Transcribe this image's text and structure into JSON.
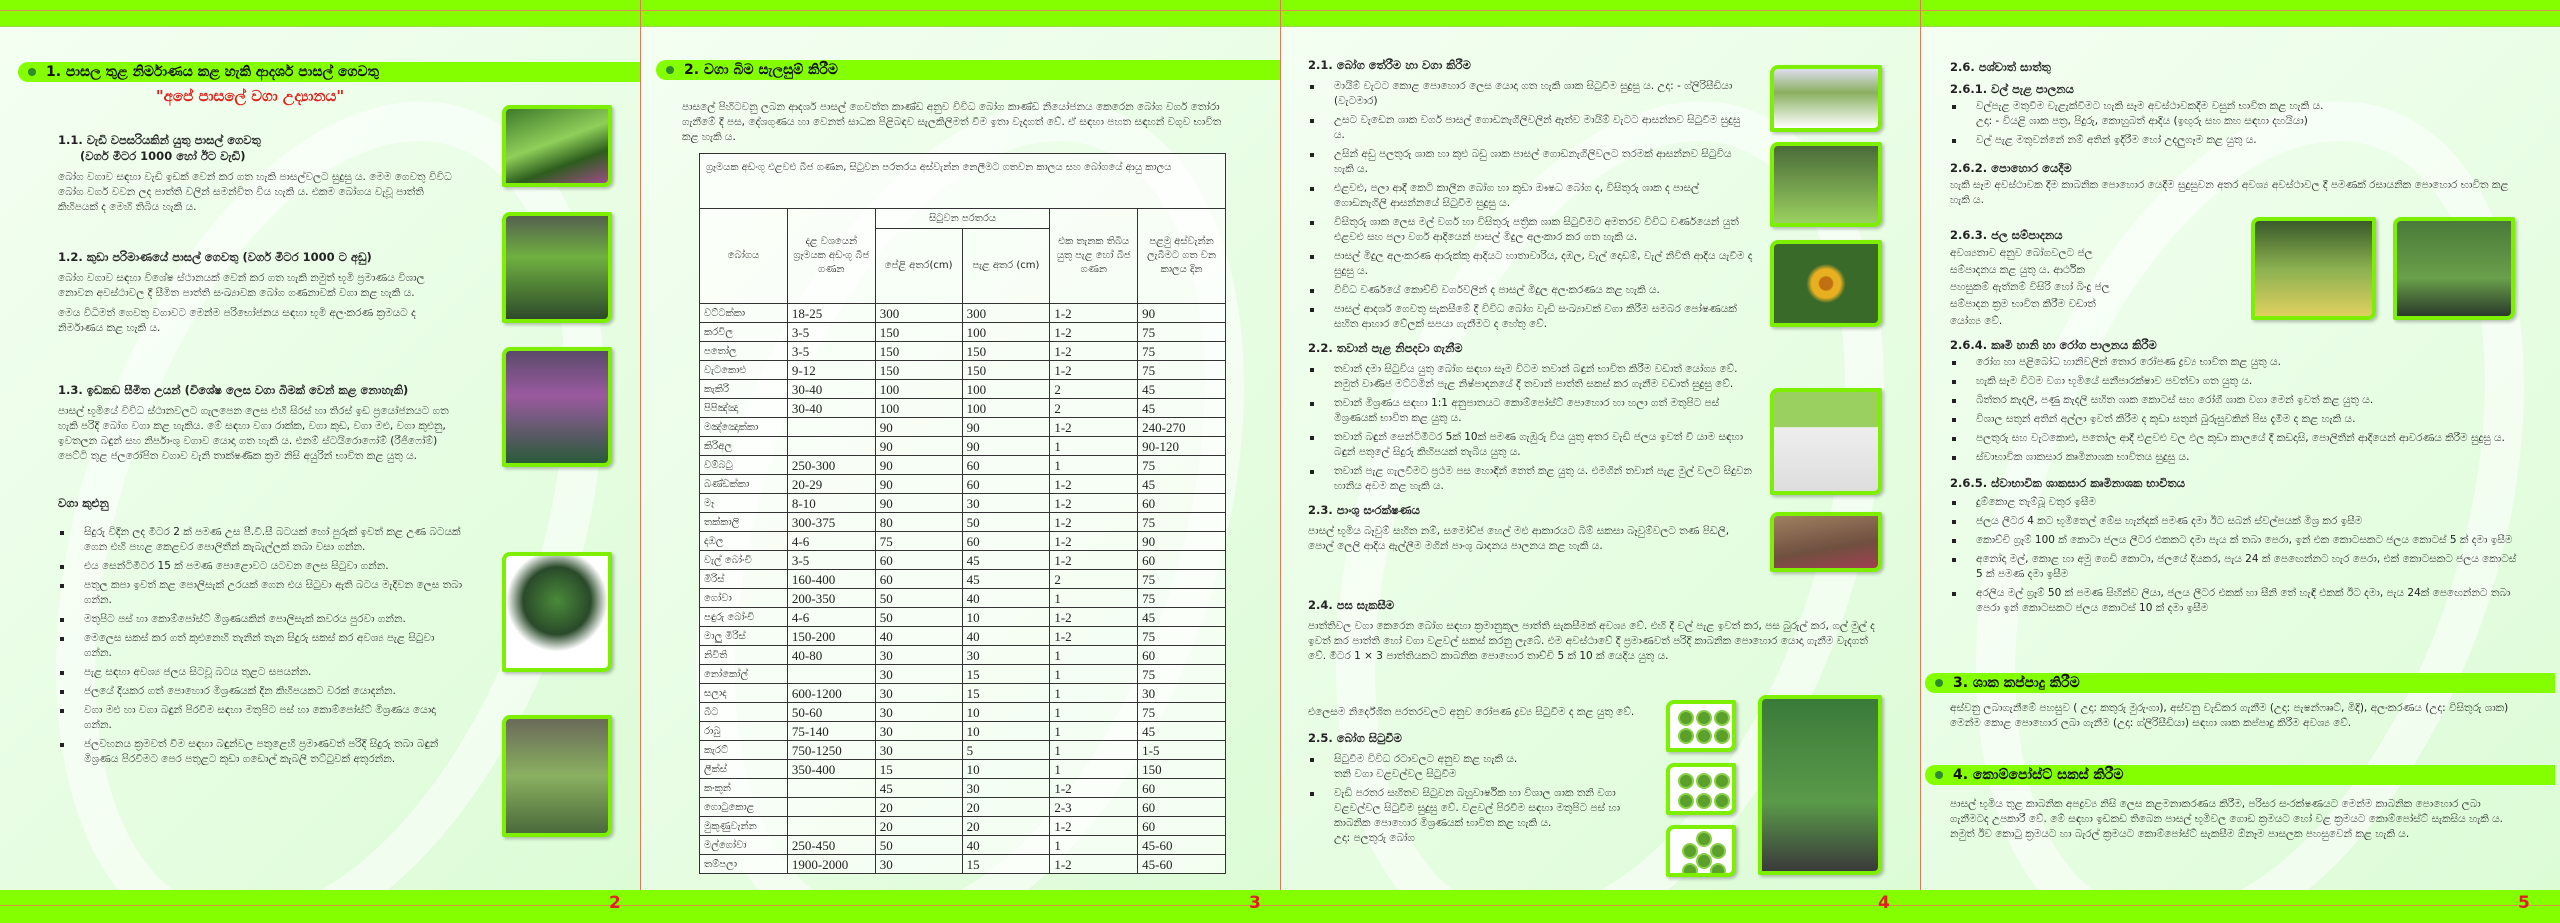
{
  "colors": {
    "band": "#84ff00",
    "page_number": "#e02020",
    "bullet_dot": "#2e8b2e"
  },
  "page2": {
    "number": "2",
    "section_title": "1.   පාසල තුළ නිර්මාණය කළ හැකි ආදර්ශ පාසල් ගෙවතු",
    "subtitle": "\"අපේ පාසලේ වගා උද්‍යානය\"",
    "s11_heading": "1.1.  වැඩි වපසරියකින් යුතු පාසල් ගෙවතු",
    "s11_heading2": "(වර්ග මීටර 1000 හෝ ඊට වැඩි)",
    "s11_text": "බෝග වගාව සඳහා වැඩි ඉඩක් වෙන් කර ගත හැකි පාසල්වලට සුදුසු ය. මෙම ගෙවතු විවිධ බෝග වර්ග වවන ලද පාත්ති වලින් සමන්විත විය හැකි ය. එකම බෝගය වැවූ පාත්ති කිහිපයක් ද මෙහි තිබිය හැකි ය.",
    "s12_heading": "1.2. කුඩා පරිමාණයේ පාසල් ගෙවතු (වර්ග මීටර 1000 ට අඩු)",
    "s12_text1": "බෝග වගාව සඳහා විශේෂ ස්ථානයක් වෙන් කර ගත හැකි නමුත් භූමි ප්‍රමාණය විශාල නොවන අවස්ථාවල දී සීමිත පාත්ති සංඛ්‍යාවක බෝග ගණනාවක් වගා කළ හැකි ය.",
    "s12_text2": "මෙය විධිමත් ගෙවතු වගාවට මෙන්ම පරිභෝජනය සඳහා භූමි අලංකරණ ක්‍රමයට ද නිර්මාණය කළ හැකි ය.",
    "s13_heading": "1.3. ඉඩකඩ සීමිත උයන් (විශේෂ ලෙස වගා බිමක් වෙන් කළ නොහැකි)",
    "s13_text": "පාසල් භූමියේ විවිධ ස්ථානවලට ගැලපෙන ලෙස එහි සිරස් හා තිරස් ඉඩ ප්‍රයෝජනයට ගත හැකි පරිදි බෝග වගා කළ හැකිය. මේ සඳහා වගා රාක්ක, වගා කුඩ, වගා මළු, වගා කුළුනු, ඉවතලන බඳුන් සහ නිර්පාංශු වගාව යොදා ගත හැකි ය. එනම් ස්ටයිරොෆෝම් (රීජිෆෝම්) පෙට්ටි තුළ ජලරෝපිත වගාව වැනි තාක්ෂණික ක්‍රම නිසි අයුරින් භාවිත කළ යුතු ය.",
    "towers_heading": "වගා කුළුනු",
    "towers_items": [
      "සිදුරු විදින ලද මීටර 2 ක් පමණ උස පී.වී.සී බටයක් හෝ පුරුක් ඉවත් කළ උණ බටයක් ගෙන එහි පහළ කෙළවර පොලිතීන් කැබැල්ලක් තබා වසා ගන්න.",
      "එය සෙන්ටිමීටර 15 ක් පමණ පොළොවට යටවන ලෙස සිටුවා ගන්න.",
      "පතුල කපා ඉවත් කළ පොලිසැක් උරයක් ගෙන එය සිටුවා ඇති බටය මැදිවන ලෙස තබා ගන්න.",
      "මතුපිට පස් හා කොම්පෝස්ට් මිශ්‍රණයකින් පොලිසැක් කවරය පුරවා ගන්න.",
      "මෙලෙස සකස් කර ගත් කුළුනෙහි තැනින් තැන සිදුරු සකස් කර අවශ්‍ය පැළ සිටුවා ගන්න.",
      "පැළ සඳහා අවශ්‍ය ජලය සිටවූ බටය තුළට සපයන්න.",
      "ජලයේ දියකර ගත් පොහොර මිශ්‍රණයක් දින කිහිපයකට වරක් යොදන්න.",
      "වගා මළු හා වගා බඳුන් පිරවීම සඳහා මතුපිට පස් හා කොම්පෝස්ට් මිශ්‍රණය යොදා ගන්න.",
      "ජලවහනය ක්‍රමවත් වීම සඳහා බඳුන්වල පතුළෙහි ප්‍රමාණවත් පරිදි සිදුරු තබා බඳුන් මිශ්‍රණය පිරවීමට පෙර පතුළට කුඩා ගඩොල් කැබලි තට්ටුවක් අතුරන්න."
    ]
  },
  "page3": {
    "number": "3",
    "section_title": "2. වගා බිම සැලසුම් කිරීම",
    "intro": "පාසලේ පිහිටවනු ලබන ආදර්ශ පාසල් ගෙවත්ත කාණ්ඩ අනුව විවිධ බෝග කාණ්ඩ නියෝජනය කෙරෙන බෝග වර්ග තෝරා ගැනීමේ දී පස, දේශගුණය හා වෙනත් සාධක පිළිබඳව සැලකිලිමත් වීම ඉතා වැදගත් වේ. ඒ සඳහා පහත සඳහන් වගුව භාවිත කළ හැකි ය.",
    "table": {
      "caption": "ග්‍රෑමයක අඩංගු එළවළු බීජ ගණන, සිටුවන පරතරය අස්වැන්න නෙලීමට ගතවන කාලය සහ බෝගයේ ආයු කාලය",
      "headers": {
        "crop": "බෝගය",
        "seeds": "දළ වශයෙන් ග්‍රෑමයක අඩංගු බීජ ගණන",
        "spacing": "සිටුවන පරතරය",
        "row": "පේළි අතර(cm)",
        "plant": "පැළ අතර (cm)",
        "per_hill": "එක තැනක තිබිය යුතු පැළ හෝ බීජ ගණන",
        "days": "පළමු අස්වැන්න ලැබීමට ගත වන කාලය දින"
      },
      "rows": [
        [
          "වට්ටක්කා",
          "18-25",
          "300",
          "300",
          "1-2",
          "90"
        ],
        [
          "කරවිල",
          "3-5",
          "150",
          "100",
          "1-2",
          "75"
        ],
        [
          "පතෝල",
          "3-5",
          "150",
          "150",
          "1-2",
          "75"
        ],
        [
          "වැටකොළු",
          "9-12",
          "150",
          "150",
          "1-2",
          "75"
        ],
        [
          "කැකිරි",
          "30-40",
          "100",
          "100",
          "2",
          "45"
        ],
        [
          "පිපිඤ්ඤා",
          "30-40",
          "100",
          "100",
          "2",
          "45"
        ],
        [
          "මඤ්ඤොක්කා",
          "",
          "90",
          "90",
          "1-2",
          "240-270"
        ],
        [
          "කිරිඅල",
          "",
          "90",
          "90",
          "1",
          "90-120"
        ],
        [
          "වම්බටු",
          "250-300",
          "90",
          "60",
          "1",
          "75"
        ],
        [
          "බණ්ඩක්කා",
          "20-29",
          "90",
          "60",
          "1-2",
          "45"
        ],
        [
          "මෑ",
          "8-10",
          "90",
          "30",
          "1-2",
          "60"
        ],
        [
          "තක්කාලි",
          "300-375",
          "80",
          "50",
          "1-2",
          "75"
        ],
        [
          "දඹල",
          "4-6",
          "75",
          "60",
          "1-2",
          "90"
        ],
        [
          "වැල් බෝංචි",
          "3-5",
          "60",
          "45",
          "1-2",
          "60"
        ],
        [
          "මිරිස්",
          "160-400",
          "60",
          "45",
          "2",
          "75"
        ],
        [
          "ගෝවා",
          "200-350",
          "50",
          "40",
          "1",
          "75"
        ],
        [
          "පඳුරු බෝංචි",
          "4-6",
          "50",
          "10",
          "1-2",
          "45"
        ],
        [
          "මාලු මිරිස්",
          "150-200",
          "40",
          "40",
          "1-2",
          "75"
        ],
        [
          "නිවිති",
          "40-80",
          "30",
          "30",
          "1",
          "60"
        ],
        [
          "නෝකෝල්",
          "",
          "30",
          "15",
          "1",
          "75"
        ],
        [
          "සලාද",
          "600-1200",
          "30",
          "15",
          "1",
          "30"
        ],
        [
          "බීට",
          "50-60",
          "30",
          "10",
          "1",
          "75"
        ],
        [
          "රාබු",
          "75-140",
          "30",
          "10",
          "1",
          "45"
        ],
        [
          "කැරට්",
          "750-1250",
          "30",
          "5",
          "1",
          "1-5"
        ],
        [
          "ලීක්ස්",
          "350-400",
          "15",
          "10",
          "1",
          "150"
        ],
        [
          "කංකුන්",
          "",
          "45",
          "30",
          "1-2",
          "60"
        ],
        [
          "ගොටුකොළ",
          "",
          "20",
          "20",
          "2-3",
          "60"
        ],
        [
          "මුකුණුවැන්න",
          "",
          "20",
          "20",
          "1-2",
          "60"
        ],
        [
          "මල්ගෝවා",
          "250-450",
          "50",
          "40",
          "1",
          "45-60"
        ],
        [
          "තම්පලා",
          "1900-2000",
          "30",
          "15",
          "1-2",
          "45-60"
        ]
      ]
    }
  },
  "page4": {
    "number": "4",
    "s21_heading": "2.1. බෝග තේරීම හා වගා කිරීම",
    "s21_items": [
      "මායිම් වැටට කොළ පොහොර ලෙස යොදා ගත හැකි ශාක සිටුවීම සුදුසු ය. උදා: - ග්ලිරිසීඩියා (වැටමාර)",
      "උසට වැඩෙන ශාක වර්ග පාසල් ගොඩනැගිලිවලින් ඈත්ව මායිම් වැටට ආසන්නව සිටුවීම සුදුසු ය.",
      "උසින් අඩු පලතුරු ශාක හා කුළු බඩු ශාක පාසල් ගොඩනැගිලිවලට තරමක් ආසන්නව සිටුවිය හැකි ය.",
      "එළවළු, පලා ආදී කෙටි කාලීන බෝග හා කුඩා ඖෂධ බෝග ද, විසිතුරු ශාක ද පාසල් ගොඩනැගිලි ආසන්නයේ සිටුවීම සුදුසු ය.",
      "විසිතුරු ශාක ලෙස මල් වර්ග හා විසිතුරු පත්‍රික ශාක සිටුවීමට අමතරව විවිධ වර්ණයෙන් යුත් එළවළු සහ පලා වර්ග ආදියෙන් පාසල් මිදුල අලංකාර කර ගත හැකි ය.",
      "පාසල් මිදුල අලංකරණ ආරුක්කු ආදියට හාතාවාරිය, දඹල, වැල් දොඩම්, වැල් නිවිති ආදිය යැවීම ද සුදුසු ය.",
      "විවිධ වර්ණයේ කොච්චි වර්ගවලින් ද පාසල් මිදුල අලංකරණය කළ හැකි ය.",
      "පාසල් ආදර්ශ ගෙවතු සැකසීමේ දී විවිධ බෝග වැඩි සංඛ්‍යාවක් වගා කිරීම සමබර පෝෂණයක් සහිත ආහාර වේලක් සපයා ගැනීමට ද හේතු වේ."
    ],
    "s22_heading": "2.2. තවාන් පැළ නිපදවා ගැනීම",
    "s22_items": [
      "තවාන් දමා සිටුවිය යුතු බෝග සඳහා සෑම විටම තවාන් බඳුන් භාවිත කිරීම වඩාත් යෝග්‍ය වේ. නමුත් වාණිජ මට්ටමින් පැළ නිෂ්පාදනයේ දී තවාන් පාත්ති සකස් කර ගැනීම වඩාත් සුදුසු වේ.",
      "තවාන් මිශ්‍රණය සඳහා 1:1 අනුපාතයට කොම්පෝස්ට් පොහොර හා හලා ගත් මතුපිට පස් මිශ්‍රණයක් භාවිත කළ යුතු ය.",
      "තවාන් බඳුන් සෙන්ටිමීටර 5ක් 10ක් පමණ ගැඹුරු විය යුතු අතර වැඩි ජලය ඉවත් වී යාම සඳහා බඳුන් පතුලේ සිදුරු කිහිපයක් තැබිය යුතු ය.",
      "තවාන් පැළ ගැලවීමට ප්‍රථම පස හොඳින් තෙත් කළ යුතු ය. එමගින් තවාන් පැළ මුල් වලට සිදුවන හානිය අවම කළ හැකි ය."
    ],
    "s23_heading": "2.3. පාංශු සංරක්ෂණය",
    "s23_text": "පාසල් භූමිය බෑවුම් සහිත නම්, සමෝච්ජ හෙල් මළු ආකාරයට බිම් සකසා බෑවුම්වලට තණ පිඩලි, පොල් ලෙලි ආදිය ඇල්ලීම මගින් පාංශු ඛාදනය පාලනය කළ හැකි ය.",
    "s24_heading": "2.4. පස සැකසීම",
    "s24_text1": "පාත්තිවල වගා කෙරෙන බෝග සඳහා ක්‍රමානුකූල පාත්ති සැකසීමක් අවශ්‍ය වේ. එහි දී වල් පැළ ඉවත් කර, පස බුරුල් කර, ගල් මුල් ද ඉවත් කර පාත්ති හෝ වගා වළවල් සකස් කරනු ලැබේ. එම අවස්ථාවේ දී ප්‍රමාණවත් පරිදි කාබනික පොහොර යොදා ගැනීම වැදගත් වේ. මීටර 1 × 3 පාත්තියකට කාබනික පොහොර තාච්චි 5 ක් 10 ක් යෙදිය යුතු ය.",
    "s24_text2": "එලෙසම නිර්දේශිත පරතරවලට අනුව රෝපණ ද්‍රව්‍ය සිටුවීම ද කළ යුතු වේ.",
    "s25_heading": "2.5. බෝග සිටුවීම",
    "s25_item1": "සිටුවීම විවිධ රටාවලට අනුව කළ හැකි ය.",
    "s25_sub1": "තනි වගා වළවල්වල සිටුවීම",
    "s25_item2": "වැඩි පරතර සහිතව සිටුවන බහුවාර්ෂික හා විශාල ශාක තනි වගා වළවල්වල සිටුවීම සුදුසු වේ. වළවල් පිරවීම සඳහා මතුපිට පස් හා කාබනික පොහොර මිශ්‍රණයක් භාවිත කළ හැකි ය.",
    "s25_example": "උදා: පලතුරු බෝග"
  },
  "page5": {
    "number": "5",
    "s26_heading": "2.6. පශ්චාත් සාත්තු",
    "s261_heading": "2.6.1. වල් පැළ පාලනය",
    "s261_item1": "වල්පැළ මතුවීම වැළැක්වීමට හැකි සෑම අවස්ථාවකදීම වසුන් භාවිත කළ හැකි ය.",
    "s261_example": "උදා: - වියළි ශාක පත්‍ර, පිදුරු, කොහුබත් ආදිය (ඉඟුරු සහ කහ සඳහා දහයියා)",
    "s261_item2": "වල් පැළ මතුවන්නේ නම් අතින් ඉදිරීම හෝ උදලුගෑම කළ යුතු ය.",
    "s262_heading": "2.6.2. පොහොර යෙදීම",
    "s262_text": "හැකි සෑම අවස්ථාවක දීම කාබනික පොහොර යෙදීම සුදුසුවන අතර අවශ්‍ය අවස්ථාවල දී පමණක් රසායනික පොහොර භාවිත කළ හැකි ය.",
    "s263_heading": "2.6.3. ජල සම්පාදනය",
    "s263_text": "අවශ්‍යතාව අනුව බෝගවලට ජල සම්පාදනය කළ යුතු ය. ආර්ථික පහසුකම් ඇත්නම් විසිරි හෝ බිංදු ජල සම්පාදන ක්‍රම භාවිත කිරීම වඩාත් යෝග්‍ය වේ.",
    "s264_heading": "2.6.4. කෘමි හානි හා රෝග පාලනය කිරීම",
    "s264_items": [
      "රෝග හා පළිබෝධ හානිවලින් තොර රෝපණ ද්‍රව්‍ය භාවිත කළ යුතු ය.",
      "හැකි සෑම විටම වගා භූමියේ සනීපාරක්ෂාව පවත්වා ගත යුතු ය.",
      "බිත්තර කැදලි, පණු කැදලි සහිත ශාක කොටස් සහ රෝගී ශාක වගා මෙන් ඉවත් කළ යුතු ය.",
      "විශාල සතුන් අතින් අල්ලා ඉවත් කිරීම ද කුඩා සතුන් බුරුසුවකින් පිස දැමීම ද කළ හැකි ය.",
      "පලතුරු සහ වැටකොළු, පතෝල ආදී එළවළු වල ඵල කුඩා කාලයේ දී කඩදාසි, පොලිතීන් ආදියෙන් ආවරණය කිරීම සුදුසු ය.",
      "ස්වාභාවික ශාකසාර කෘමිනාශක භාවිතය සුදුසු ය."
    ],
    "s265_heading": "2.6.5. ස්වාභාවික ශාකසාර කෘමිනාශක භාවිතය",
    "s265_items": [
      "දුම්කොළ තැම්බූ වතුර ඉසීම",
      "ජලය ලීටර 4 කට භූමිතෙල් මේස හැන්දක් පමණ දමා ඊට සබන් ස්වල්පයක් මිශ්‍ර කර ඉසීම",
      "කොච්චි ග්‍රෑම් 100 ක් කොටා ජලය ලීටර එකකට දමා පැය ක් තබා පෙරා, ඉන් එක කොටසකට ජලය කොටස් 5 ක් දමා ඉසීම",
      "අනෝදා මල්, කොළ හා අමු ගෙඩි කොටා, ජලයේ දියකර, පැය 24 ක් පෙඟෙන්නට හැර පෙරා, එක් කොටසකට ජලය කොටස් 5 ක් පමණ දමා ඉසීම",
      "අරලිය මල් ග්‍රෑම් 50 ක් පමණ සිහින්ව ලියා, ජලය ලීටර එකක් හා සීනි තේ හැඳි එකක් ඊට දමා, පැය 24ක් පෙඟෙන්නට තබා පෙරා ඉන් කොටසකට ජලය කොටස් 10 ක් දමා ඉසීම"
    ],
    "s3_title": "3. ශාක කප්පාදු කිරීම",
    "s3_text": "අස්වනු ලබාගැනීමේ පහසුව ( උදා: කතුරු මුරුංගා), අස්වනු වැඩිකර ගැනීම (උදා: පැෂන්ෆෲට්, මිදි), අලංකරණය (උදා: විසිතුරු ශාක) මෙන්ම කොළ පොහොර ලබා ගැනීම (උදා: ග්ලිරිසීඩියා) සඳහා ශාක කප්පාදු කිරීම අවශ්‍ය වේ.",
    "s4_title": "4. කොම්පෝස්ට් සකස් කිරීම",
    "s4_text": "පාසල් භූමිය තුළ කාබනික අපද්‍රව්‍ය නිසි ලෙස කළමනාකරණය කිරීම, පරිසර සංරක්ෂණයට මෙන්ම කාබනික පොහොර ලබා ගැනීමටද උපකාරී වේ. මේ සඳහා ඉඩකඩ තිබෙන පාසල් භූමිවල ගොඩ ක්‍රමයට හෝ වළ ක්‍රමයට කොම්පෝස්ට් සැකසිය හැකි ය. නමුත් ඊව කොටු ක්‍රමයට හා බැරල් ක්‍රමයට  කොම්පෝස්ට් සැකසීම ඕනෑම පාසලක පහසුවෙන් කළ හැකි ය."
  }
}
